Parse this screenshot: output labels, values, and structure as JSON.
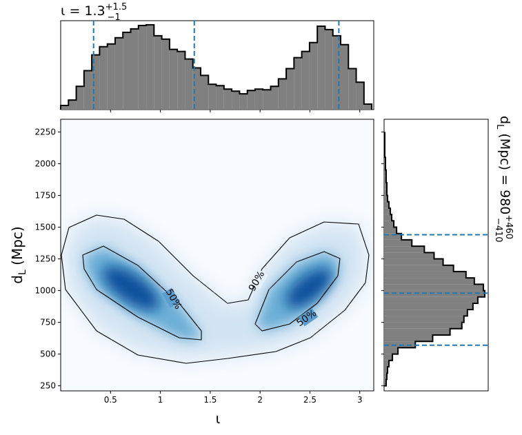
{
  "chart_data": [
    {
      "type": "histogram",
      "title": {
        "base": "ι = 1.3",
        "sup": "+1.5",
        "sub": "−1"
      },
      "bins": [
        0,
        0.078,
        0.156,
        0.234,
        0.312,
        0.39,
        0.468,
        0.546,
        0.624,
        0.702,
        0.78,
        0.858,
        0.936,
        1.014,
        1.092,
        1.17,
        1.248,
        1.326,
        1.404,
        1.482,
        1.56,
        1.638,
        1.716,
        1.794,
        1.872,
        1.95,
        2.028,
        2.106,
        2.184,
        2.262,
        2.34,
        2.418,
        2.496,
        2.574,
        2.652,
        2.73,
        2.808,
        2.886,
        2.964,
        3.042,
        3.12
      ],
      "values": [
        6,
        14,
        34,
        57,
        80,
        92,
        96,
        105,
        113,
        118,
        123,
        124,
        108,
        103,
        88,
        85,
        74,
        61,
        50,
        37,
        35,
        30,
        27,
        23,
        28,
        30,
        29,
        34,
        45,
        60,
        76,
        85,
        98,
        122,
        117,
        108,
        95,
        60,
        40,
        8
      ],
      "color": "#808080",
      "xlim": [
        0,
        3.14
      ],
      "ylim": [
        0,
        130
      ],
      "xticks": [
        0.5,
        1.0,
        1.5,
        2.0,
        2.5,
        3.0
      ],
      "quantiles": [
        0.33,
        1.34,
        2.79
      ],
      "quantile_color": "#1f77b4"
    },
    {
      "type": "density",
      "xlabel": "ι",
      "ylabel": {
        "main": "d",
        "sub": "L",
        "rest": " (Mpc)"
      },
      "xlim": [
        0,
        3.14
      ],
      "ylim": [
        210,
        2350
      ],
      "xticks": [
        0.5,
        1.0,
        1.5,
        2.0,
        2.5,
        3.0
      ],
      "yticks": [
        250,
        500,
        750,
        1000,
        1250,
        1500,
        1750,
        2000,
        2250
      ],
      "contour_labels": [
        "50%",
        "90%",
        "50%"
      ],
      "colormap": "Blues"
    },
    {
      "type": "histogram",
      "orientation": "horizontal",
      "title": {
        "main": "d",
        "sub": "L",
        "rest": " (Mpc) = 980",
        "sup": "+460",
        "sub2": "−410"
      },
      "bins": [
        250,
        300,
        350,
        400,
        450,
        500,
        550,
        600,
        650,
        700,
        750,
        800,
        850,
        900,
        950,
        1000,
        1050,
        1100,
        1150,
        1200,
        1250,
        1300,
        1350,
        1400,
        1450,
        1500,
        1550,
        1600,
        1650,
        1700,
        1750,
        1800,
        1850,
        1900,
        1950,
        2000,
        2050,
        2100,
        2150,
        2200,
        2250
      ],
      "values": [
        3,
        4,
        5,
        7,
        12,
        20,
        45,
        70,
        95,
        112,
        115,
        120,
        128,
        135,
        145,
        143,
        130,
        118,
        100,
        85,
        72,
        58,
        40,
        25,
        18,
        14,
        11,
        9,
        7,
        5,
        4,
        4,
        3,
        3,
        2,
        2,
        1,
        1,
        1,
        1
      ],
      "color": "#808080",
      "xlim": [
        0,
        150
      ],
      "ylim": [
        210,
        2350
      ],
      "yticks": [
        250,
        500,
        750,
        1000,
        1250,
        1500,
        1750,
        2000,
        2250
      ],
      "quantiles": [
        570,
        980,
        1440
      ],
      "quantile_color": "#1f77b4"
    }
  ]
}
